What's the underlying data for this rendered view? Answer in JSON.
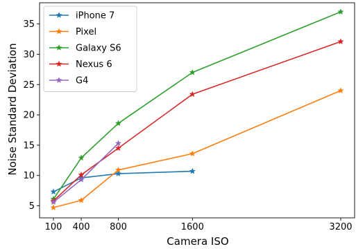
{
  "chart_data": {
    "type": "line",
    "xlabel": "Camera ISO",
    "ylabel": "Noise Standard Deviation",
    "xlim": [
      -50,
      3350
    ],
    "ylim": [
      3.0,
      38.5
    ],
    "xticks": [
      100,
      400,
      800,
      1600,
      3200
    ],
    "yticks": [
      5,
      10,
      15,
      20,
      25,
      30,
      35
    ],
    "grid": false,
    "legend_position": "top-left",
    "marker": "star",
    "series": [
      {
        "name": "iPhone 7",
        "color": "#1f77b4",
        "x": [
          100,
          400,
          800,
          1600
        ],
        "y": [
          7.3,
          9.6,
          10.3,
          10.7
        ]
      },
      {
        "name": "Pixel",
        "color": "#ff7f0e",
        "x": [
          100,
          400,
          800,
          1600,
          3200
        ],
        "y": [
          4.7,
          5.9,
          10.9,
          13.6,
          24.0
        ]
      },
      {
        "name": "Galaxy S6",
        "color": "#2ca02c",
        "x": [
          100,
          400,
          800,
          1600,
          3200
        ],
        "y": [
          6.1,
          12.9,
          18.6,
          27.0,
          37.0
        ]
      },
      {
        "name": "Nexus 6",
        "color": "#d62728",
        "x": [
          100,
          400,
          800,
          1600,
          3200
        ],
        "y": [
          5.8,
          10.1,
          14.5,
          23.4,
          32.1
        ]
      },
      {
        "name": "G4",
        "color": "#9467bd",
        "x": [
          100,
          400,
          800
        ],
        "y": [
          5.6,
          9.3,
          15.3
        ]
      }
    ]
  }
}
